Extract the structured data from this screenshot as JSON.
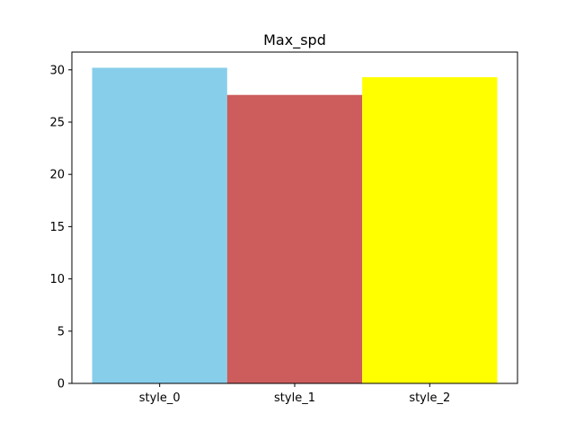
{
  "chart_data": {
    "type": "bar",
    "title": "Max_spd",
    "xlabel": "",
    "ylabel": "",
    "categories": [
      "style_0",
      "style_1",
      "style_2"
    ],
    "values": [
      30.2,
      27.6,
      29.3
    ],
    "colors": [
      "#87ceeb",
      "#cd5c5c",
      "#ffff00"
    ],
    "ylim": [
      0,
      31.7
    ],
    "yticks": [
      0,
      5,
      10,
      15,
      20,
      25,
      30
    ],
    "grid": false,
    "legend": "none"
  }
}
